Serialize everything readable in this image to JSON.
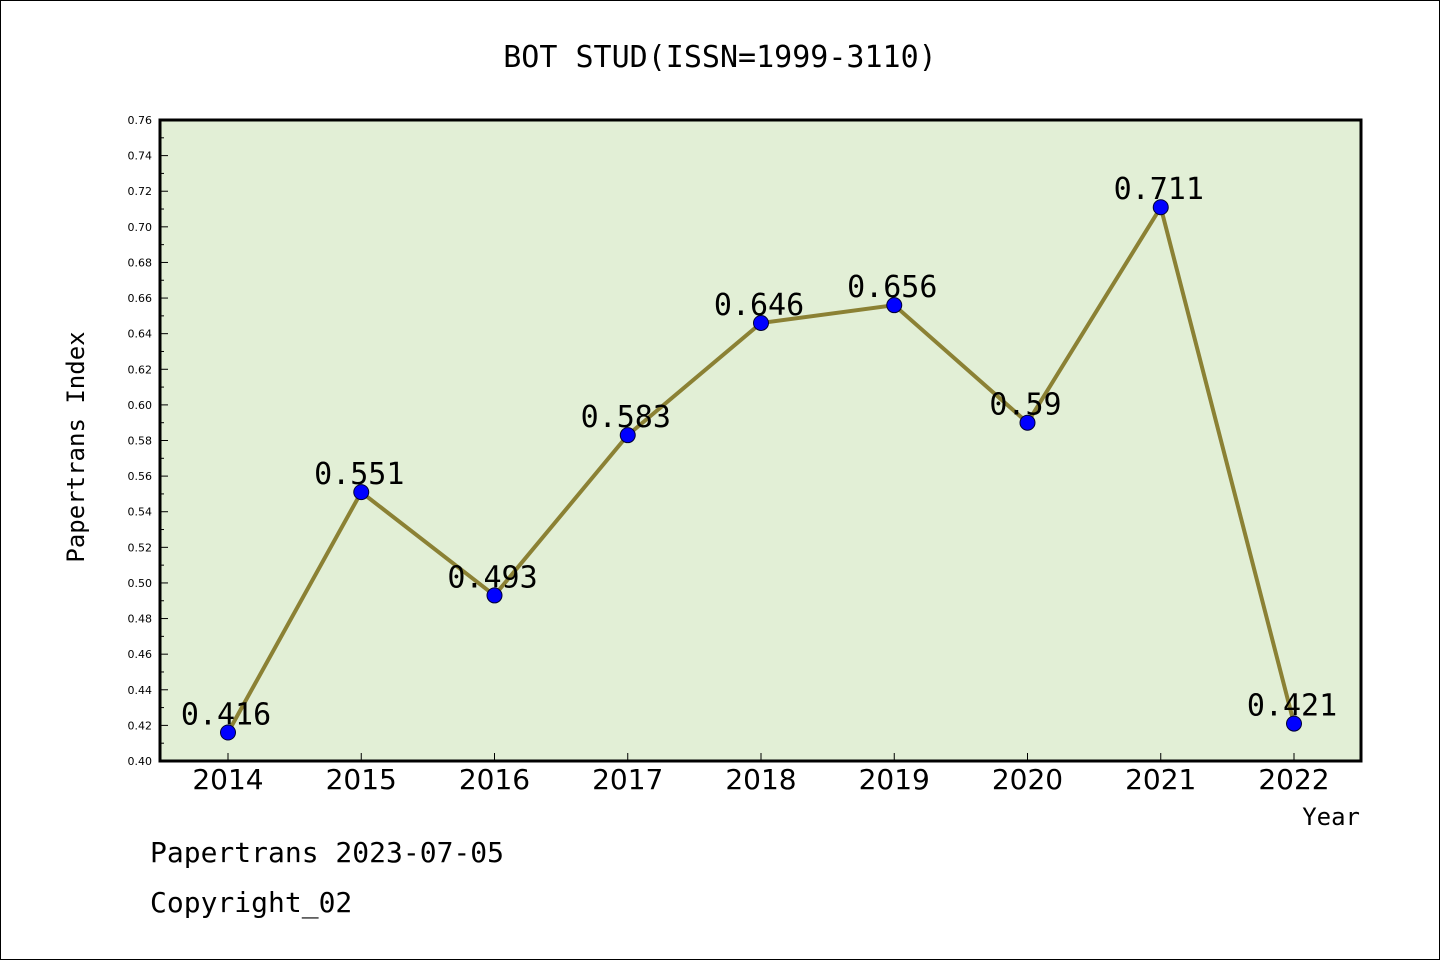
{
  "chart_data": {
    "type": "line",
    "title": "BOT STUD(ISSN=1999-3110)",
    "xlabel": "Year",
    "ylabel": "Papertrans Index",
    "categories": [
      "2014",
      "2015",
      "2016",
      "2017",
      "2018",
      "2019",
      "2020",
      "2021",
      "2022"
    ],
    "values": [
      0.416,
      0.551,
      0.493,
      0.583,
      0.646,
      0.656,
      0.59,
      0.711,
      0.421
    ],
    "data_labels": [
      "0.416",
      "0.551",
      "0.493",
      "0.583",
      "0.646",
      "0.656",
      "0.59",
      "0.711",
      "0.421"
    ],
    "ylim": [
      0.4,
      0.76
    ],
    "yticks": [
      "0.40",
      "0.42",
      "0.44",
      "0.46",
      "0.48",
      "0.50",
      "0.52",
      "0.54",
      "0.56",
      "0.58",
      "0.60",
      "0.62",
      "0.64",
      "0.66",
      "0.68",
      "0.70",
      "0.72",
      "0.74",
      "0.76"
    ],
    "grid": false,
    "legend": "none",
    "colors": {
      "plot_background": "#e2efd6",
      "line": "#8b8134",
      "marker": "#0000ff",
      "axis": "#000000"
    }
  },
  "footer": {
    "line1": "Papertrans 2023-07-05",
    "line2": "Copyright_02"
  }
}
